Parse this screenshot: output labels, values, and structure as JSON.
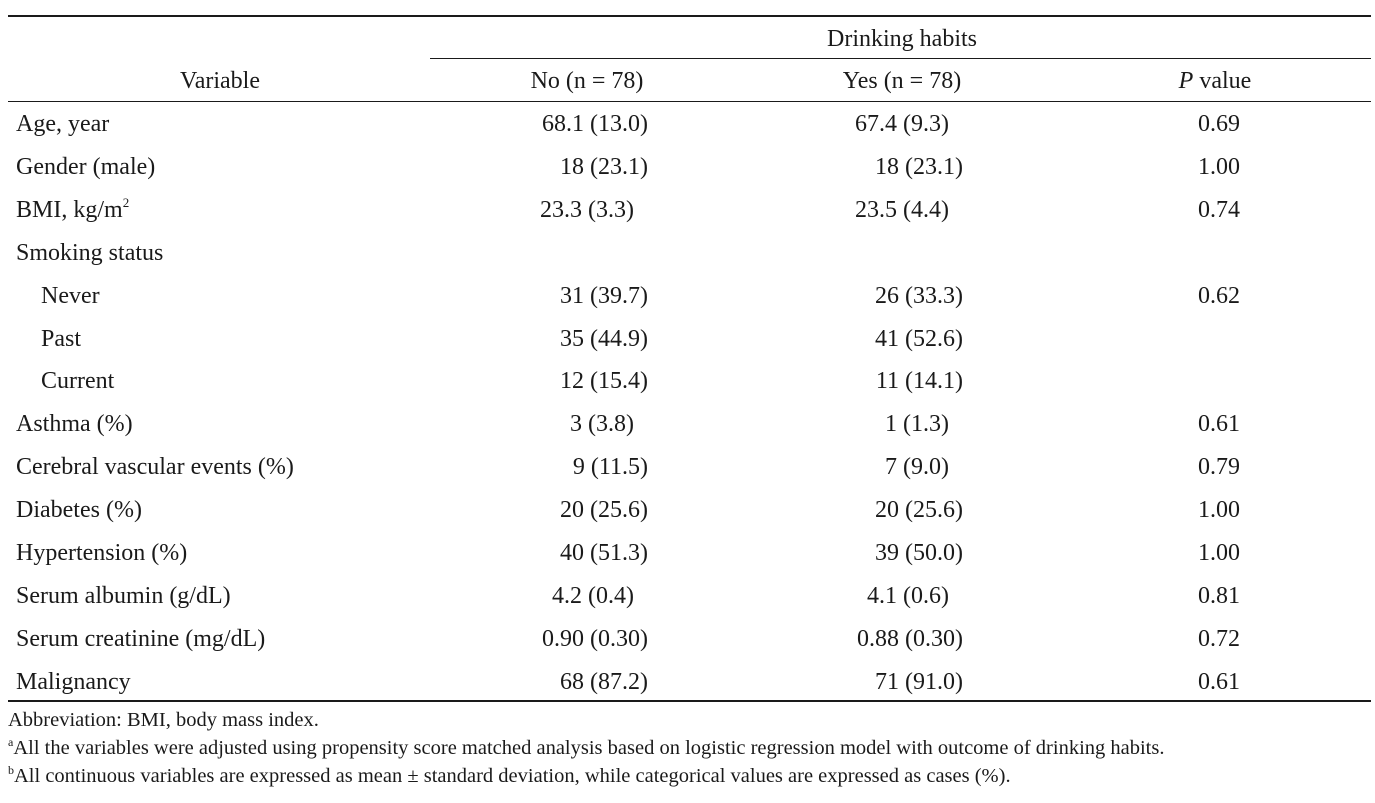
{
  "table": {
    "group_header": "Drinking habits",
    "col_variable": "Variable",
    "col_no": "No (n = 78)",
    "col_yes": "Yes (n = 78)",
    "col_p_italic": "P",
    "col_p_rest": " value",
    "rows": [
      {
        "label": "Age, year",
        "no": "68.1 (13.0)",
        "yes": "67.4 (9.3)",
        "p": "0.69"
      },
      {
        "label": "Gender (male)",
        "no": "18 (23.1)",
        "yes": "18 (23.1)",
        "p": "1.00"
      },
      {
        "label": "BMI, kg/m",
        "label_sup": "2",
        "no": "23.3 (3.3)",
        "yes": "23.5 (4.4)",
        "p": "0.74"
      },
      {
        "label": "Smoking status",
        "no": "",
        "yes": "",
        "p": ""
      },
      {
        "label": "Never",
        "no": "31 (39.7)",
        "yes": "26 (33.3)",
        "p": "0.62"
      },
      {
        "label": "Past",
        "no": "35 (44.9)",
        "yes": "41 (52.6)",
        "p": ""
      },
      {
        "label": "Current",
        "no": "12 (15.4)",
        "yes": "11 (14.1)",
        "p": ""
      },
      {
        "label": "Asthma (%)",
        "no": "3 (3.8)",
        "yes": "1 (1.3)",
        "p": "0.61"
      },
      {
        "label": "Cerebral vascular events (%)",
        "no": "9 (11.5)",
        "yes": "7 (9.0)",
        "p": "0.79"
      },
      {
        "label": "Diabetes (%)",
        "no": "20 (25.6)",
        "yes": "20 (25.6)",
        "p": "1.00"
      },
      {
        "label": "Hypertension (%)",
        "no": "40 (51.3)",
        "yes": "39 (50.0)",
        "p": "1.00"
      },
      {
        "label": "Serum albumin (g/dL)",
        "no": "4.2 (0.4)",
        "yes": "4.1 (0.6)",
        "p": "0.81"
      },
      {
        "label": "Serum creatinine (mg/dL)",
        "no": "0.90 (0.30)",
        "yes": "0.88 (0.30)",
        "p": "0.72"
      },
      {
        "label": "Malignancy",
        "no": "68 (87.2)",
        "yes": "71 (91.0)",
        "p": "0.61"
      }
    ]
  },
  "footnotes": {
    "abbrev": "Abbreviation: BMI, body mass index.",
    "a_mark": "a",
    "a_text": "All the variables were adjusted using propensity score matched analysis based on logistic regression model with outcome of drinking habits.",
    "b_mark": "b",
    "b_text": "All continuous variables are expressed as mean ± standard deviation, while categorical values are expressed as cases (%)."
  }
}
